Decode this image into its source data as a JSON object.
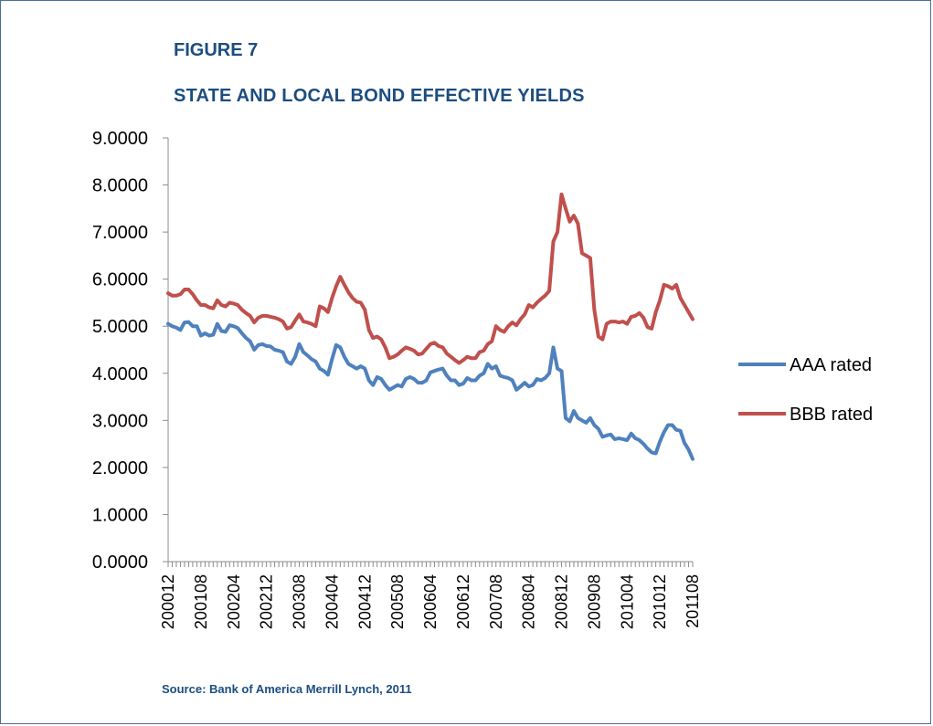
{
  "figure_label": "FIGURE 7",
  "title": "STATE AND LOCAL BOND EFFECTIVE YIELDS",
  "source": "Source:  Bank of America Merrill Lynch, 2011",
  "chart_data": {
    "type": "line",
    "title": "STATE AND LOCAL BOND EFFECTIVE YIELDS",
    "xlabel": "",
    "ylabel": "",
    "ylim": [
      0,
      9
    ],
    "y_ticks": [
      "0.0000",
      "1.0000",
      "2.0000",
      "3.0000",
      "4.0000",
      "5.0000",
      "6.0000",
      "7.0000",
      "8.0000",
      "9.0000"
    ],
    "x_tick_labels": [
      "200012",
      "200108",
      "200204",
      "200212",
      "200308",
      "200404",
      "200412",
      "200508",
      "200604",
      "200612",
      "200708",
      "200804",
      "200812",
      "200908",
      "201004",
      "201012",
      "201108"
    ],
    "x_range": [
      "200012",
      "201108"
    ],
    "grid": false,
    "legend_position": "right",
    "series": [
      {
        "name": "AAA rated",
        "color": "#4f81bd",
        "points": [
          [
            "200012",
            5.05
          ],
          [
            "200101",
            5.0
          ],
          [
            "200102",
            4.97
          ],
          [
            "200103",
            4.92
          ],
          [
            "200104",
            5.08
          ],
          [
            "200105",
            5.09
          ],
          [
            "200106",
            5.0
          ],
          [
            "200107",
            5.0
          ],
          [
            "200108",
            4.8
          ],
          [
            "200109",
            4.85
          ],
          [
            "200110",
            4.8
          ],
          [
            "200111",
            4.82
          ],
          [
            "200112",
            5.05
          ],
          [
            "200201",
            4.9
          ],
          [
            "200202",
            4.88
          ],
          [
            "200203",
            5.02
          ],
          [
            "200204",
            5.0
          ],
          [
            "200205",
            4.96
          ],
          [
            "200206",
            4.85
          ],
          [
            "200207",
            4.75
          ],
          [
            "200208",
            4.68
          ],
          [
            "200209",
            4.5
          ],
          [
            "200210",
            4.6
          ],
          [
            "200211",
            4.62
          ],
          [
            "200212",
            4.58
          ],
          [
            "200301",
            4.57
          ],
          [
            "200302",
            4.5
          ],
          [
            "200303",
            4.48
          ],
          [
            "200304",
            4.45
          ],
          [
            "200305",
            4.25
          ],
          [
            "200306",
            4.2
          ],
          [
            "200307",
            4.35
          ],
          [
            "200308",
            4.62
          ],
          [
            "200309",
            4.45
          ],
          [
            "200310",
            4.38
          ],
          [
            "200311",
            4.3
          ],
          [
            "200312",
            4.25
          ],
          [
            "200401",
            4.1
          ],
          [
            "200402",
            4.05
          ],
          [
            "200403",
            3.97
          ],
          [
            "200404",
            4.3
          ],
          [
            "200405",
            4.6
          ],
          [
            "200406",
            4.55
          ],
          [
            "200407",
            4.35
          ],
          [
            "200408",
            4.2
          ],
          [
            "200409",
            4.15
          ],
          [
            "200410",
            4.1
          ],
          [
            "200411",
            4.15
          ],
          [
            "200412",
            4.1
          ],
          [
            "200501",
            3.85
          ],
          [
            "200502",
            3.75
          ],
          [
            "200503",
            3.92
          ],
          [
            "200504",
            3.88
          ],
          [
            "200505",
            3.75
          ],
          [
            "200506",
            3.65
          ],
          [
            "200507",
            3.7
          ],
          [
            "200508",
            3.75
          ],
          [
            "200509",
            3.72
          ],
          [
            "200510",
            3.88
          ],
          [
            "200511",
            3.92
          ],
          [
            "200512",
            3.88
          ],
          [
            "200601",
            3.8
          ],
          [
            "200602",
            3.8
          ],
          [
            "200603",
            3.85
          ],
          [
            "200604",
            4.02
          ],
          [
            "200605",
            4.05
          ],
          [
            "200606",
            4.08
          ],
          [
            "200607",
            4.1
          ],
          [
            "200608",
            3.95
          ],
          [
            "200609",
            3.85
          ],
          [
            "200610",
            3.85
          ],
          [
            "200611",
            3.75
          ],
          [
            "200612",
            3.78
          ],
          [
            "200701",
            3.9
          ],
          [
            "200702",
            3.85
          ],
          [
            "200703",
            3.85
          ],
          [
            "200704",
            3.95
          ],
          [
            "200705",
            4.0
          ],
          [
            "200706",
            4.2
          ],
          [
            "200707",
            4.1
          ],
          [
            "200708",
            4.15
          ],
          [
            "200709",
            3.95
          ],
          [
            "200710",
            3.92
          ],
          [
            "200711",
            3.9
          ],
          [
            "200712",
            3.85
          ],
          [
            "200801",
            3.65
          ],
          [
            "200802",
            3.72
          ],
          [
            "200803",
            3.8
          ],
          [
            "200804",
            3.72
          ],
          [
            "200805",
            3.75
          ],
          [
            "200806",
            3.88
          ],
          [
            "200807",
            3.85
          ],
          [
            "200808",
            3.9
          ],
          [
            "200809",
            4.0
          ],
          [
            "200810",
            4.55
          ],
          [
            "200811",
            4.1
          ],
          [
            "200812",
            4.05
          ],
          [
            "200901",
            3.05
          ],
          [
            "200902",
            2.98
          ],
          [
            "200903",
            3.2
          ],
          [
            "200904",
            3.05
          ],
          [
            "200905",
            3.0
          ],
          [
            "200906",
            2.95
          ],
          [
            "200907",
            3.05
          ],
          [
            "200908",
            2.9
          ],
          [
            "200909",
            2.82
          ],
          [
            "200910",
            2.65
          ],
          [
            "200911",
            2.68
          ],
          [
            "200912",
            2.7
          ],
          [
            "201001",
            2.6
          ],
          [
            "201002",
            2.62
          ],
          [
            "201003",
            2.6
          ],
          [
            "201004",
            2.58
          ],
          [
            "201005",
            2.72
          ],
          [
            "201006",
            2.62
          ],
          [
            "201007",
            2.58
          ],
          [
            "201008",
            2.5
          ],
          [
            "201009",
            2.4
          ],
          [
            "201010",
            2.32
          ],
          [
            "201011",
            2.3
          ],
          [
            "201012",
            2.55
          ],
          [
            "201101",
            2.75
          ],
          [
            "201102",
            2.9
          ],
          [
            "201103",
            2.9
          ],
          [
            "201104",
            2.8
          ],
          [
            "201105",
            2.78
          ],
          [
            "201106",
            2.52
          ],
          [
            "201107",
            2.38
          ],
          [
            "201108",
            2.18
          ]
        ]
      },
      {
        "name": "BBB rated",
        "color": "#c0504d",
        "points": [
          [
            "200012",
            5.7
          ],
          [
            "200101",
            5.65
          ],
          [
            "200102",
            5.65
          ],
          [
            "200103",
            5.68
          ],
          [
            "200104",
            5.78
          ],
          [
            "200105",
            5.78
          ],
          [
            "200106",
            5.68
          ],
          [
            "200107",
            5.55
          ],
          [
            "200108",
            5.45
          ],
          [
            "200109",
            5.45
          ],
          [
            "200110",
            5.4
          ],
          [
            "200111",
            5.38
          ],
          [
            "200112",
            5.55
          ],
          [
            "200201",
            5.45
          ],
          [
            "200202",
            5.42
          ],
          [
            "200203",
            5.5
          ],
          [
            "200204",
            5.48
          ],
          [
            "200205",
            5.45
          ],
          [
            "200206",
            5.35
          ],
          [
            "200207",
            5.28
          ],
          [
            "200208",
            5.22
          ],
          [
            "200209",
            5.08
          ],
          [
            "200210",
            5.18
          ],
          [
            "200211",
            5.22
          ],
          [
            "200212",
            5.22
          ],
          [
            "200301",
            5.2
          ],
          [
            "200302",
            5.18
          ],
          [
            "200303",
            5.15
          ],
          [
            "200304",
            5.1
          ],
          [
            "200305",
            4.95
          ],
          [
            "200306",
            4.98
          ],
          [
            "200307",
            5.12
          ],
          [
            "200308",
            5.25
          ],
          [
            "200309",
            5.1
          ],
          [
            "200310",
            5.08
          ],
          [
            "200311",
            5.05
          ],
          [
            "200312",
            5.0
          ],
          [
            "200401",
            5.42
          ],
          [
            "200402",
            5.38
          ],
          [
            "200403",
            5.3
          ],
          [
            "200404",
            5.6
          ],
          [
            "200405",
            5.85
          ],
          [
            "200406",
            6.05
          ],
          [
            "200407",
            5.88
          ],
          [
            "200408",
            5.72
          ],
          [
            "200409",
            5.6
          ],
          [
            "200410",
            5.52
          ],
          [
            "200411",
            5.5
          ],
          [
            "200412",
            5.35
          ],
          [
            "200501",
            4.92
          ],
          [
            "200502",
            4.75
          ],
          [
            "200503",
            4.78
          ],
          [
            "200504",
            4.72
          ],
          [
            "200505",
            4.55
          ],
          [
            "200506",
            4.32
          ],
          [
            "200507",
            4.35
          ],
          [
            "200508",
            4.4
          ],
          [
            "200509",
            4.48
          ],
          [
            "200510",
            4.55
          ],
          [
            "200511",
            4.52
          ],
          [
            "200512",
            4.48
          ],
          [
            "200601",
            4.4
          ],
          [
            "200602",
            4.42
          ],
          [
            "200603",
            4.52
          ],
          [
            "200604",
            4.62
          ],
          [
            "200605",
            4.65
          ],
          [
            "200606",
            4.58
          ],
          [
            "200607",
            4.55
          ],
          [
            "200608",
            4.42
          ],
          [
            "200609",
            4.35
          ],
          [
            "200610",
            4.28
          ],
          [
            "200611",
            4.22
          ],
          [
            "200612",
            4.28
          ],
          [
            "200701",
            4.35
          ],
          [
            "200702",
            4.32
          ],
          [
            "200703",
            4.32
          ],
          [
            "200704",
            4.45
          ],
          [
            "200705",
            4.48
          ],
          [
            "200706",
            4.62
          ],
          [
            "200707",
            4.68
          ],
          [
            "200708",
            5.0
          ],
          [
            "200709",
            4.92
          ],
          [
            "200710",
            4.88
          ],
          [
            "200711",
            5.0
          ],
          [
            "200712",
            5.08
          ],
          [
            "200801",
            5.02
          ],
          [
            "200802",
            5.15
          ],
          [
            "200803",
            5.25
          ],
          [
            "200804",
            5.45
          ],
          [
            "200805",
            5.4
          ],
          [
            "200806",
            5.5
          ],
          [
            "200807",
            5.58
          ],
          [
            "200808",
            5.65
          ],
          [
            "200809",
            5.75
          ],
          [
            "200810",
            6.8
          ],
          [
            "200811",
            7.0
          ],
          [
            "200812",
            7.8
          ],
          [
            "200901",
            7.5
          ],
          [
            "200902",
            7.22
          ],
          [
            "200903",
            7.35
          ],
          [
            "200904",
            7.18
          ],
          [
            "200905",
            6.55
          ],
          [
            "200906",
            6.5
          ],
          [
            "200907",
            6.45
          ],
          [
            "200908",
            5.35
          ],
          [
            "200909",
            4.78
          ],
          [
            "200910",
            4.72
          ],
          [
            "200911",
            5.05
          ],
          [
            "200912",
            5.1
          ],
          [
            "201001",
            5.1
          ],
          [
            "201002",
            5.08
          ],
          [
            "201003",
            5.1
          ],
          [
            "201004",
            5.05
          ],
          [
            "201005",
            5.2
          ],
          [
            "201006",
            5.22
          ],
          [
            "201007",
            5.28
          ],
          [
            "201008",
            5.18
          ],
          [
            "201009",
            4.98
          ],
          [
            "201010",
            4.95
          ],
          [
            "201011",
            5.3
          ],
          [
            "201012",
            5.55
          ],
          [
            "201101",
            5.88
          ],
          [
            "201102",
            5.85
          ],
          [
            "201103",
            5.8
          ],
          [
            "201104",
            5.88
          ],
          [
            "201105",
            5.6
          ],
          [
            "201106",
            5.45
          ],
          [
            "201107",
            5.3
          ],
          [
            "201108",
            5.15
          ]
        ]
      }
    ]
  }
}
